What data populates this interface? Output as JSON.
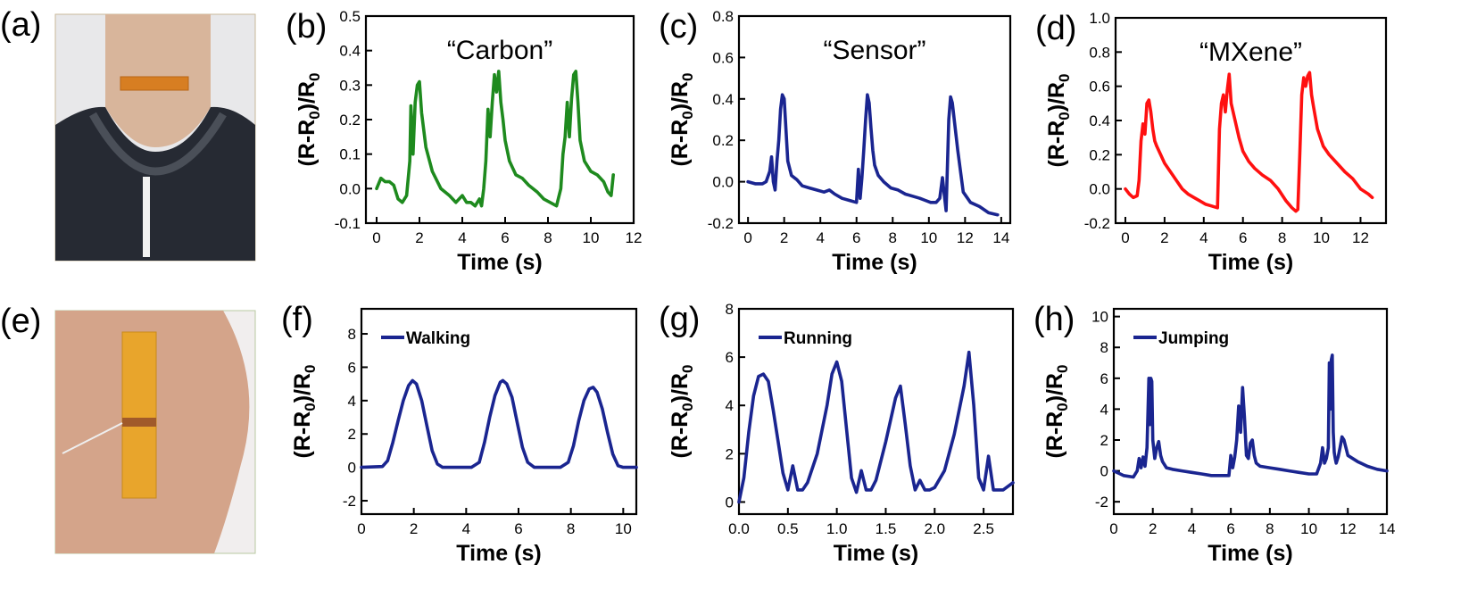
{
  "photos": [
    {
      "letter": "(a)",
      "subject": "sensor on neck"
    },
    {
      "letter": "(e)",
      "subject": "sensor on leg"
    }
  ],
  "chart_data": [
    {
      "letter": "(b)",
      "type": "line",
      "title": "“Carbon”",
      "color": "#1e8a1e",
      "xlabel": "Time (s)",
      "ylabel": "(R-R0)/R0",
      "xlim": [
        -0.5,
        12
      ],
      "ylim": [
        -0.1,
        0.5
      ],
      "xticks": [
        0,
        2,
        4,
        6,
        8,
        10,
        12
      ],
      "yticks": [
        -0.1,
        0.0,
        0.1,
        0.2,
        0.3,
        0.4,
        0.5
      ],
      "ytick_labels": [
        "-0.1",
        "0.0",
        "0.1",
        "0.2",
        "0.3",
        "0.4",
        "0.5"
      ],
      "legend": "",
      "series": [
        {
          "x": [
            0,
            0.2,
            0.4,
            0.6,
            0.8,
            1.0,
            1.2,
            1.4,
            1.55,
            1.6,
            1.7,
            1.8,
            1.9,
            2.0,
            2.1,
            2.3,
            2.6,
            3.0,
            3.4,
            3.7,
            4.0,
            4.2,
            4.4,
            4.6,
            4.8,
            4.9,
            5.0,
            5.1,
            5.2,
            5.3,
            5.4,
            5.5,
            5.6,
            5.7,
            5.8,
            5.9,
            6.0,
            6.2,
            6.5,
            6.8,
            7.1,
            7.5,
            7.8,
            8.1,
            8.4,
            8.6,
            8.7,
            8.8,
            8.9,
            9.0,
            9.1,
            9.2,
            9.3,
            9.4,
            9.5,
            9.7,
            10.0,
            10.3,
            10.6,
            10.8,
            10.95,
            11.05
          ],
          "y": [
            0.0,
            0.03,
            0.02,
            0.02,
            0.01,
            -0.03,
            -0.04,
            -0.02,
            0.08,
            0.24,
            0.1,
            0.25,
            0.3,
            0.31,
            0.22,
            0.12,
            0.05,
            0.0,
            -0.02,
            -0.04,
            -0.02,
            -0.04,
            -0.04,
            -0.05,
            -0.03,
            -0.05,
            0.0,
            0.08,
            0.23,
            0.15,
            0.25,
            0.33,
            0.28,
            0.34,
            0.25,
            0.2,
            0.14,
            0.08,
            0.04,
            0.03,
            0.01,
            -0.01,
            -0.03,
            -0.04,
            -0.05,
            0.0,
            0.1,
            0.15,
            0.25,
            0.15,
            0.26,
            0.33,
            0.34,
            0.25,
            0.14,
            0.08,
            0.05,
            0.04,
            0.02,
            -0.01,
            -0.02,
            0.04
          ]
        }
      ]
    },
    {
      "letter": "(c)",
      "type": "line",
      "title": "“Sensor”",
      "color": "#1a2590",
      "xlabel": "Time (s)",
      "ylabel": "(R-R0)/R0",
      "xlim": [
        -0.5,
        14.5
      ],
      "ylim": [
        -0.2,
        0.8
      ],
      "xticks": [
        0,
        2,
        4,
        6,
        8,
        10,
        12,
        14
      ],
      "yticks": [
        -0.2,
        0.0,
        0.2,
        0.4,
        0.6,
        0.8
      ],
      "ytick_labels": [
        "-0.2",
        "0.0",
        "0.2",
        "0.4",
        "0.6",
        "0.8"
      ],
      "legend": "",
      "series": [
        {
          "x": [
            0,
            0.4,
            0.8,
            1.0,
            1.2,
            1.3,
            1.4,
            1.5,
            1.6,
            1.7,
            1.8,
            1.9,
            2.0,
            2.1,
            2.2,
            2.4,
            2.7,
            3.0,
            3.4,
            3.8,
            4.2,
            4.5,
            4.8,
            5.2,
            5.6,
            6.0,
            6.1,
            6.2,
            6.3,
            6.4,
            6.5,
            6.6,
            6.7,
            6.8,
            6.9,
            7.0,
            7.2,
            7.5,
            7.9,
            8.3,
            8.7,
            9.1,
            9.5,
            9.8,
            10.1,
            10.4,
            10.6,
            10.75,
            10.85,
            10.95,
            11.1,
            11.2,
            11.3,
            11.4,
            11.6,
            11.9,
            12.3,
            12.8,
            13.3,
            13.8
          ],
          "y": [
            0.0,
            -0.01,
            -0.01,
            0.0,
            0.05,
            0.12,
            0.0,
            -0.04,
            0.1,
            0.2,
            0.35,
            0.42,
            0.4,
            0.25,
            0.1,
            0.03,
            0.01,
            -0.02,
            -0.03,
            -0.04,
            -0.05,
            -0.04,
            -0.06,
            -0.08,
            -0.09,
            -0.1,
            0.06,
            -0.08,
            0.02,
            0.15,
            0.3,
            0.42,
            0.38,
            0.26,
            0.15,
            0.08,
            0.03,
            0.0,
            -0.03,
            -0.04,
            -0.06,
            -0.07,
            -0.08,
            -0.09,
            -0.1,
            -0.1,
            -0.08,
            0.02,
            -0.06,
            -0.14,
            0.3,
            0.41,
            0.38,
            0.3,
            0.15,
            -0.05,
            -0.1,
            -0.12,
            -0.15,
            -0.16
          ]
        }
      ]
    },
    {
      "letter": "(d)",
      "type": "line",
      "title": "“MXene”",
      "color": "#ff1010",
      "xlabel": "Time (s)",
      "ylabel": "(R-R0)/R0",
      "xlim": [
        -0.5,
        13.3
      ],
      "ylim": [
        -0.2,
        1.0
      ],
      "xticks": [
        0,
        2,
        4,
        6,
        8,
        10,
        12
      ],
      "yticks": [
        -0.2,
        0.0,
        0.2,
        0.4,
        0.6,
        0.8,
        1.0
      ],
      "ytick_labels": [
        "-0.2",
        "0.0",
        "0.2",
        "0.4",
        "0.6",
        "0.8",
        "1.0"
      ],
      "legend": "",
      "series": [
        {
          "x": [
            0,
            0.2,
            0.4,
            0.6,
            0.7,
            0.8,
            0.9,
            1.0,
            1.1,
            1.2,
            1.3,
            1.4,
            1.5,
            1.6,
            1.8,
            2.0,
            2.3,
            2.6,
            2.9,
            3.2,
            3.5,
            3.8,
            4.1,
            4.4,
            4.7,
            4.8,
            4.9,
            5.0,
            5.1,
            5.2,
            5.3,
            5.4,
            5.5,
            5.6,
            5.8,
            6.0,
            6.3,
            6.6,
            7.0,
            7.4,
            7.8,
            8.2,
            8.5,
            8.7,
            8.8,
            8.9,
            9.0,
            9.1,
            9.2,
            9.3,
            9.4,
            9.5,
            9.6,
            9.8,
            10.1,
            10.4,
            10.8,
            11.2,
            11.6,
            12.0,
            12.4,
            12.6
          ],
          "y": [
            0.0,
            -0.03,
            -0.05,
            -0.04,
            0.05,
            0.28,
            0.38,
            0.32,
            0.5,
            0.52,
            0.45,
            0.35,
            0.28,
            0.25,
            0.2,
            0.15,
            0.1,
            0.05,
            0.0,
            -0.03,
            -0.05,
            -0.07,
            -0.09,
            -0.1,
            -0.11,
            0.35,
            0.5,
            0.55,
            0.45,
            0.58,
            0.67,
            0.5,
            0.45,
            0.4,
            0.3,
            0.22,
            0.16,
            0.12,
            0.08,
            0.05,
            0.0,
            -0.07,
            -0.11,
            -0.13,
            -0.12,
            0.2,
            0.55,
            0.65,
            0.6,
            0.66,
            0.68,
            0.55,
            0.48,
            0.35,
            0.25,
            0.2,
            0.15,
            0.1,
            0.06,
            0.0,
            -0.03,
            -0.05
          ]
        }
      ]
    },
    {
      "letter": "(f)",
      "type": "line",
      "title": "",
      "color": "#1a2590",
      "xlabel": "Time (s)",
      "ylabel": "(R-R0)/R0",
      "xlim": [
        0,
        10.5
      ],
      "ylim": [
        -2.8,
        9.5
      ],
      "xticks": [
        0,
        2,
        4,
        6,
        8,
        10
      ],
      "yticks": [
        -2,
        0,
        2,
        4,
        6,
        8
      ],
      "ytick_labels": [
        "-2",
        "0",
        "2",
        "4",
        "6",
        "8"
      ],
      "legend": "Walking",
      "series": [
        {
          "x": [
            0,
            0.8,
            1.0,
            1.2,
            1.4,
            1.6,
            1.8,
            1.95,
            2.1,
            2.3,
            2.5,
            2.7,
            2.9,
            3.1,
            4.2,
            4.5,
            4.7,
            4.9,
            5.1,
            5.3,
            5.4,
            5.55,
            5.75,
            5.95,
            6.15,
            6.35,
            6.6,
            7.6,
            7.9,
            8.1,
            8.3,
            8.5,
            8.7,
            8.85,
            9.0,
            9.2,
            9.4,
            9.6,
            9.8,
            10.0,
            10.5
          ],
          "y": [
            0.0,
            0.05,
            0.4,
            1.5,
            2.8,
            4.0,
            4.9,
            5.2,
            5.0,
            4.0,
            2.5,
            1.0,
            0.2,
            0.0,
            0.0,
            0.3,
            1.5,
            3.0,
            4.3,
            5.1,
            5.2,
            5.0,
            4.2,
            2.7,
            1.2,
            0.3,
            0.0,
            0.0,
            0.3,
            1.3,
            2.8,
            4.0,
            4.7,
            4.8,
            4.5,
            3.5,
            2.1,
            0.8,
            0.1,
            0.0,
            0.0
          ]
        }
      ]
    },
    {
      "letter": "(g)",
      "type": "line",
      "title": "",
      "color": "#1a2590",
      "xlabel": "Time (s)",
      "ylabel": "(R-R0)/R0",
      "xlim": [
        0,
        2.8
      ],
      "ylim": [
        -0.5,
        8
      ],
      "xticks": [
        0.0,
        0.5,
        1.0,
        1.5,
        2.0,
        2.5
      ],
      "yticks": [
        0,
        2,
        4,
        6,
        8
      ],
      "ytick_labels": [
        "0",
        "2",
        "4",
        "6",
        "8"
      ],
      "legend": "Running",
      "series": [
        {
          "x": [
            0,
            0.05,
            0.1,
            0.15,
            0.2,
            0.25,
            0.3,
            0.35,
            0.4,
            0.45,
            0.5,
            0.55,
            0.6,
            0.65,
            0.7,
            0.8,
            0.9,
            0.95,
            1.0,
            1.05,
            1.1,
            1.15,
            1.2,
            1.25,
            1.3,
            1.35,
            1.4,
            1.5,
            1.6,
            1.65,
            1.7,
            1.75,
            1.8,
            1.85,
            1.9,
            1.95,
            2.0,
            2.1,
            2.2,
            2.3,
            2.35,
            2.4,
            2.45,
            2.5,
            2.55,
            2.6,
            2.7,
            2.8
          ],
          "y": [
            0.0,
            1.0,
            2.9,
            4.4,
            5.2,
            5.3,
            5.0,
            3.8,
            2.5,
            1.2,
            0.5,
            1.5,
            0.5,
            0.5,
            0.8,
            2.0,
            4.0,
            5.3,
            5.8,
            5.0,
            3.0,
            1.0,
            0.4,
            1.3,
            0.5,
            0.5,
            0.9,
            2.5,
            4.3,
            4.8,
            3.2,
            1.5,
            0.5,
            0.9,
            0.5,
            0.5,
            0.6,
            1.3,
            2.8,
            4.8,
            6.2,
            4.0,
            1.0,
            0.5,
            1.9,
            0.5,
            0.5,
            0.8
          ]
        }
      ]
    },
    {
      "letter": "(h)",
      "type": "line",
      "title": "",
      "color": "#1a2590",
      "xlabel": "Time (s)",
      "ylabel": "(R-R0)/R0",
      "xlim": [
        0,
        14
      ],
      "ylim": [
        -2.8,
        10.5
      ],
      "xticks": [
        0,
        2,
        4,
        6,
        8,
        10,
        12,
        14
      ],
      "yticks": [
        -2,
        0,
        2,
        4,
        6,
        8,
        10
      ],
      "ytick_labels": [
        "-2",
        "0",
        "2",
        "4",
        "6",
        "8",
        "10"
      ],
      "legend": "Jumping",
      "series": [
        {
          "x": [
            0,
            0.5,
            1.0,
            1.2,
            1.3,
            1.4,
            1.5,
            1.6,
            1.7,
            1.8,
            1.85,
            1.9,
            1.95,
            2.0,
            2.1,
            2.2,
            2.3,
            2.4,
            2.5,
            2.7,
            3.0,
            3.5,
            4.0,
            4.5,
            5.0,
            5.5,
            5.9,
            6.0,
            6.1,
            6.2,
            6.3,
            6.4,
            6.5,
            6.6,
            6.7,
            6.8,
            6.9,
            7.0,
            7.1,
            7.2,
            7.3,
            7.5,
            8.0,
            8.5,
            9.0,
            9.5,
            10.0,
            10.4,
            10.6,
            10.7,
            10.8,
            10.9,
            11.0,
            11.05,
            11.1,
            11.15,
            11.2,
            11.25,
            11.3,
            11.35,
            11.4,
            11.5,
            11.6,
            11.7,
            11.8,
            11.9,
            12.0,
            12.5,
            13.0,
            13.5,
            14.0
          ],
          "y": [
            0.0,
            -0.3,
            -0.4,
            0.0,
            0.8,
            0.2,
            0.9,
            0.3,
            1.5,
            6.0,
            3.0,
            6.0,
            5.8,
            2.0,
            0.8,
            1.5,
            1.9,
            1.0,
            0.6,
            0.2,
            0.1,
            0.0,
            -0.1,
            -0.2,
            -0.3,
            -0.3,
            -0.3,
            1.0,
            0.2,
            0.9,
            2.0,
            4.2,
            2.5,
            5.4,
            3.5,
            1.0,
            0.8,
            1.8,
            2.0,
            1.0,
            0.5,
            0.3,
            0.2,
            0.1,
            0.0,
            -0.1,
            -0.2,
            -0.2,
            0.5,
            1.5,
            0.5,
            0.8,
            1.5,
            7.0,
            4.0,
            7.2,
            7.5,
            2.5,
            1.2,
            0.8,
            0.5,
            0.9,
            1.5,
            2.2,
            2.0,
            1.5,
            1.0,
            0.6,
            0.3,
            0.1,
            0.0
          ]
        }
      ]
    }
  ]
}
